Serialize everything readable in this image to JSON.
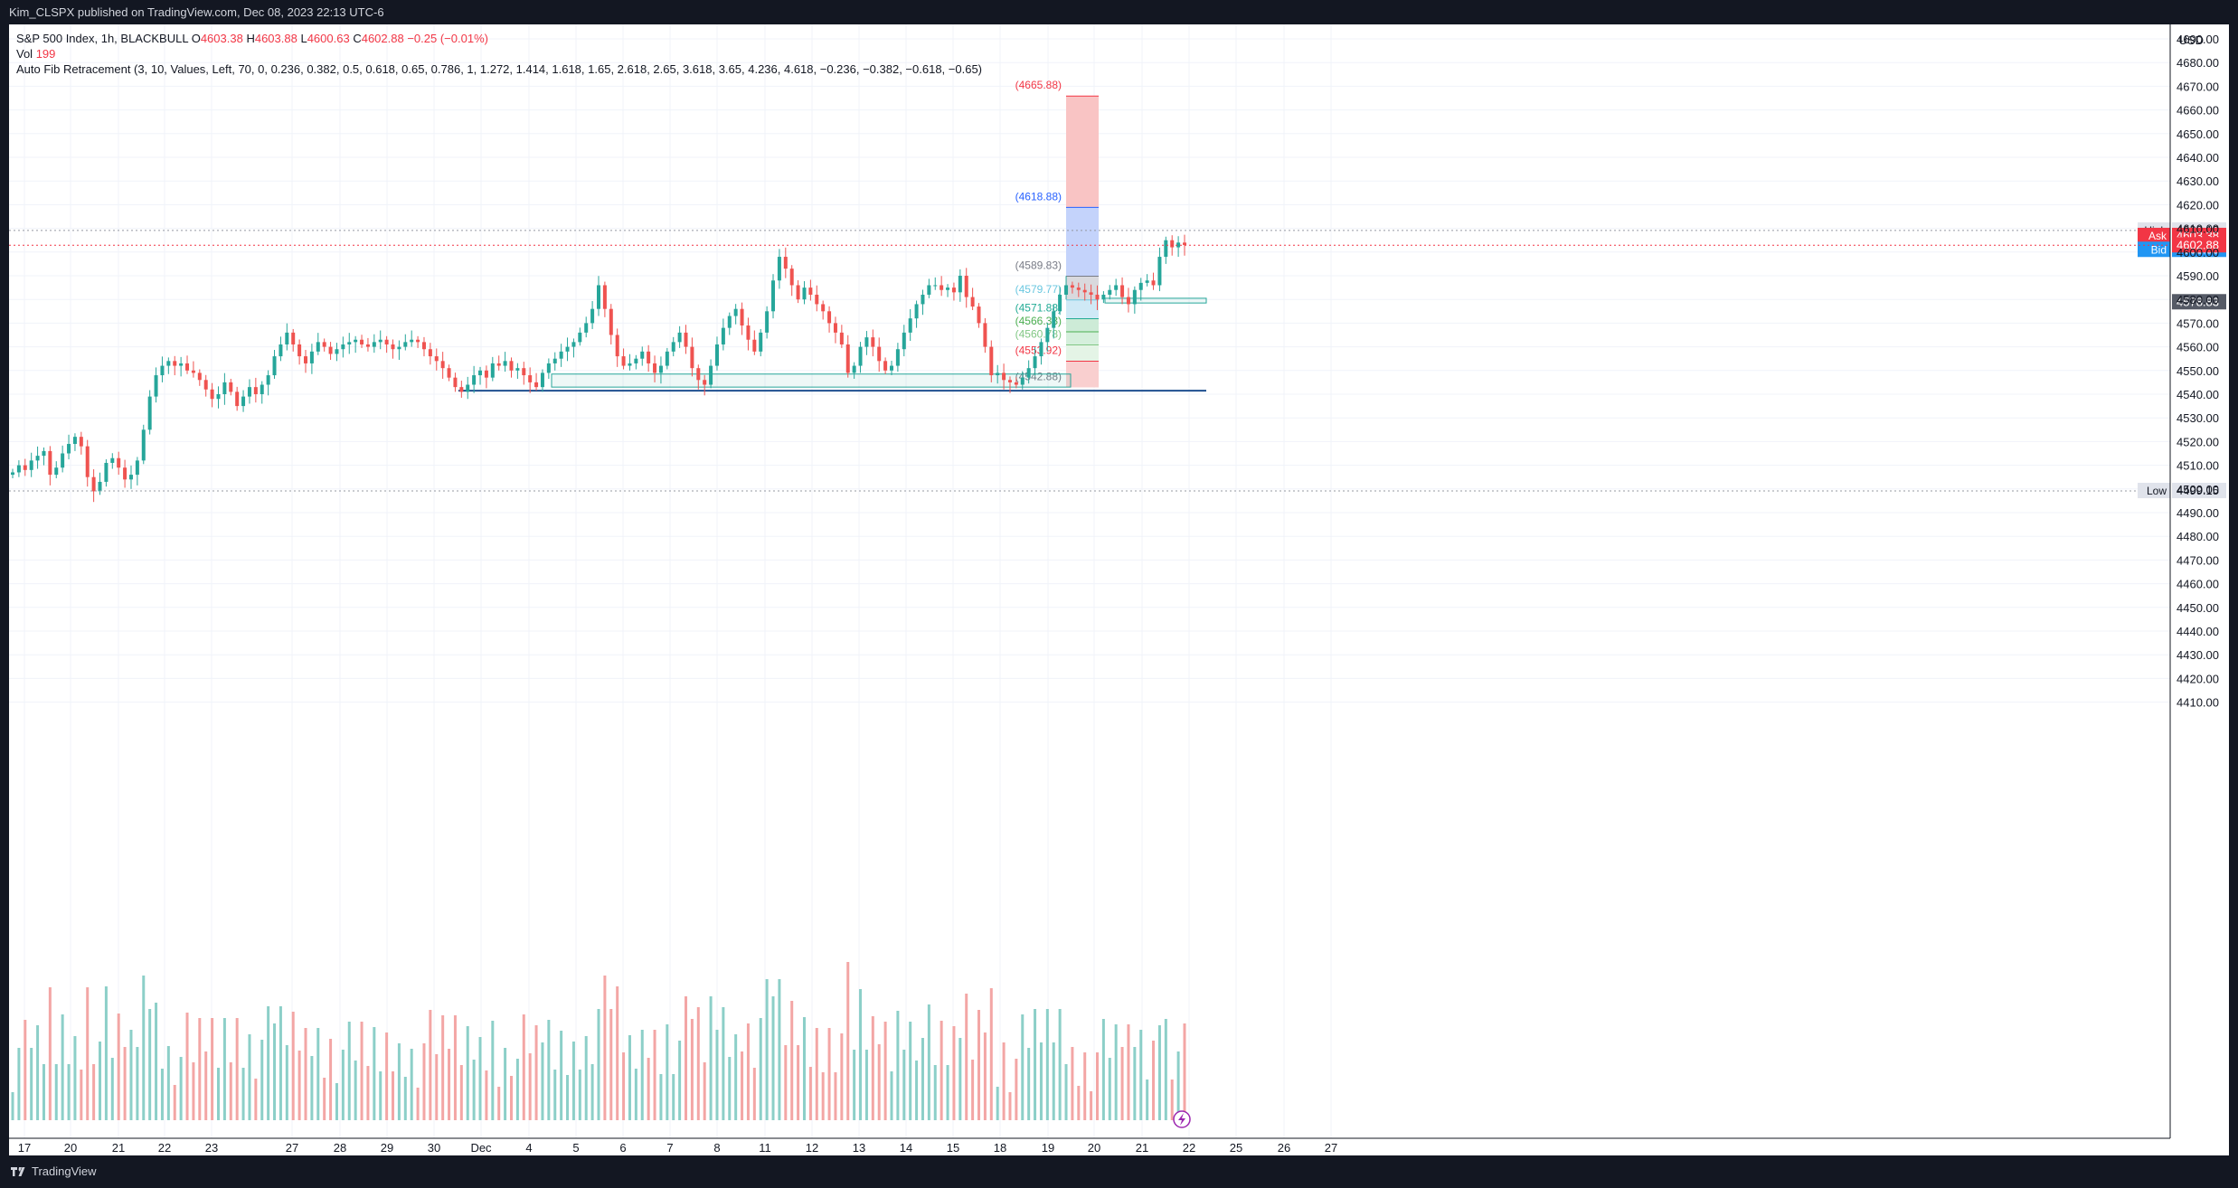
{
  "header": {
    "publisher": "Kim_CLSPX published on TradingView.com, Dec 08, 2023 22:13 UTC-6"
  },
  "footer": {
    "brand": "TradingView"
  },
  "legend": {
    "symbol": "S&P 500 Index, 1h, BLACKBULL",
    "o_label": "O",
    "o_value": "4603.38",
    "h_label": "H",
    "h_value": "4603.88",
    "l_label": "L",
    "l_value": "4600.63",
    "c_label": "C",
    "c_value": "4602.88",
    "change": "−0.25 (−0.01%)",
    "vol_label": "Vol",
    "vol_value": "199",
    "indicator": "Auto Fib Retracement (3, 10, Values, Left, 70, 0, 0.236, 0.382, 0.5, 0.618, 0.65, 0.786, 1, 1.272, 1.414, 1.618, 1.65, 2.618, 2.65, 3.618, 3.65, 4.236, 4.618, −0.236, −0.382, −0.618, −0.65)"
  },
  "colors": {
    "up": "#26a69a",
    "down": "#ef5350",
    "up_vol": "#8ccfc8",
    "down_vol": "#f3a6a5",
    "accent_blue": "#2962ff"
  },
  "chart_data": {
    "type": "candlestick",
    "currency": "USD",
    "y_range": [
      4410,
      4695
    ],
    "price_ticks": [
      "4690.00",
      "4680.00",
      "4670.00",
      "4660.00",
      "4650.00",
      "4640.00",
      "4630.00",
      "4620.00",
      "4610.00",
      "4600.00",
      "4590.00",
      "4580.00",
      "4570.00",
      "4560.00",
      "4550.00",
      "4540.00",
      "4530.00",
      "4520.00",
      "4510.00",
      "4500.00",
      "4490.00",
      "4480.00",
      "4470.00",
      "4460.00",
      "4450.00",
      "4440.00",
      "4430.00",
      "4420.00",
      "4410.00"
    ],
    "x_ticks": [
      "17",
      "20",
      "21",
      "22",
      "23",
      "27",
      "28",
      "29",
      "30",
      "Dec",
      "4",
      "5",
      "6",
      "7",
      "8",
      "11",
      "12",
      "13",
      "14",
      "15",
      "18",
      "19",
      "20",
      "21",
      "22",
      "25",
      "26",
      "27"
    ],
    "price_labels": [
      {
        "tag": "High",
        "value": "4609.13"
      },
      {
        "tag": "Ask",
        "value": "4603.38"
      },
      {
        "tag": "Bid",
        "value": "4602.88"
      },
      {
        "tag": "",
        "value": "4602.88"
      },
      {
        "tag": "",
        "value": "4578.83"
      },
      {
        "tag": "Low",
        "value": "4499.15"
      }
    ],
    "fib_levels": [
      {
        "label": "(4665.88)",
        "value": 4665.88
      },
      {
        "label": "(4618.88)",
        "value": 4618.88
      },
      {
        "label": "(4589.83)",
        "value": 4589.83
      },
      {
        "label": "(4579.77)",
        "value": 4579.77
      },
      {
        "label": "(4571.88)",
        "value": 4571.88
      },
      {
        "label": "(4566.33)",
        "value": 4566.33
      },
      {
        "label": "(4560.78)",
        "value": 4560.78
      },
      {
        "label": "(4553.92)",
        "value": 4553.92
      },
      {
        "label": "(4542.88)",
        "value": 4542.88
      }
    ],
    "support_line": 4541.5,
    "rectangles": [
      {
        "from": 4548.5,
        "to": 4543.0
      },
      {
        "from": 4580.5,
        "to": 4578.5
      }
    ],
    "closes": [
      4507,
      4510,
      4508,
      4512,
      4514,
      4516,
      4506,
      4509,
      4515,
      4519,
      4522,
      4518,
      4505,
      4499,
      4503,
      4511,
      4513,
      4509,
      4504,
      4506,
      4512,
      4525,
      4539,
      4548,
      4552,
      4554,
      4552,
      4553,
      4550,
      4549,
      4546,
      4542,
      4538,
      4540,
      4545,
      4541,
      4535,
      4539,
      4543,
      4540,
      4544,
      4548,
      4556,
      4561,
      4566,
      4561,
      4556,
      4553,
      4558,
      4562,
      4560,
      4557,
      4559,
      4561,
      4562,
      4563,
      4561,
      4560,
      4562,
      4563,
      4561,
      4559,
      4560,
      4562,
      4563,
      4562,
      4559,
      4556,
      4554,
      4551,
      4547,
      4543,
      4541,
      4544,
      4548,
      4550,
      4547,
      4553,
      4552,
      4554,
      4550,
      4551,
      4548,
      4545,
      4543,
      4549,
      4553,
      4555,
      4558,
      4560,
      4562,
      4566,
      4570,
      4576,
      4586,
      4576,
      4565,
      4556,
      4552,
      4553,
      4555,
      4558,
      4553,
      4549,
      4552,
      4558,
      4562,
      4566,
      4560,
      4551,
      4546,
      4544,
      4552,
      4561,
      4568,
      4573,
      4576,
      4569,
      4563,
      4558,
      4566,
      4575,
      4588,
      4598,
      4593,
      4586,
      4580,
      4585,
      4582,
      4578,
      4575,
      4570,
      4566,
      4561,
      4549,
      4552,
      4560,
      4564,
      4560,
      4554,
      4550,
      4552,
      4559,
      4566,
      4572,
      4578,
      4582,
      4586,
      4586,
      4584,
      4585,
      4583,
      4590,
      4581,
      4577,
      4570,
      4560,
      4548,
      4549,
      4546,
      4545,
      4544,
      4547,
      4551,
      4556,
      4562,
      4568,
      4575,
      4582,
      4586,
      4585,
      4584,
      4583,
      4582,
      4580,
      4582,
      4584,
      4586,
      4581,
      4578,
      4584,
      4587,
      4588,
      4586,
      4598,
      4605,
      4602,
      4604,
      4603
    ]
  }
}
